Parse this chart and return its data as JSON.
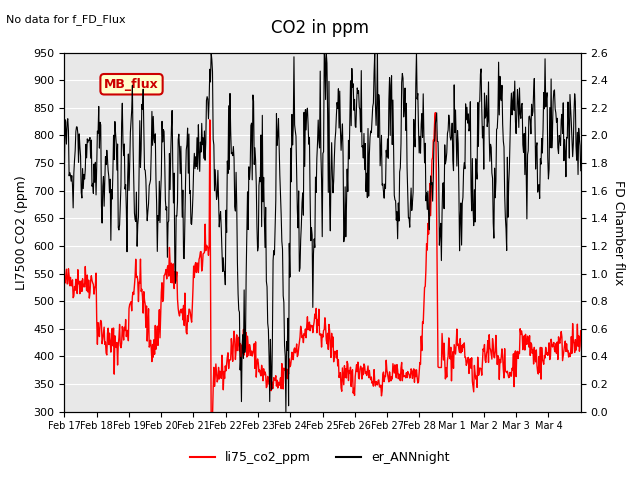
{
  "title": "CO2 in ppm",
  "top_left_text": "No data for f_FD_Flux",
  "ylabel_left": "LI7500 CO2 (ppm)",
  "ylabel_right": "FD Chamber flux",
  "ylim_left": [
    300,
    950
  ],
  "ylim_right": [
    0.0,
    2.6
  ],
  "yticks_left": [
    300,
    350,
    400,
    450,
    500,
    550,
    600,
    650,
    700,
    750,
    800,
    850,
    900,
    950
  ],
  "yticks_right": [
    0.0,
    0.2,
    0.4,
    0.6,
    0.8,
    1.0,
    1.2,
    1.4,
    1.6,
    1.8,
    2.0,
    2.2,
    2.4,
    2.6
  ],
  "xtick_labels": [
    "Feb 17",
    "Feb 18",
    "Feb 19",
    "Feb 20",
    "Feb 21",
    "Feb 22",
    "Feb 23",
    "Feb 24",
    "Feb 25",
    "Feb 26",
    "Feb 27",
    "Feb 28",
    "Mar 1",
    "Mar 2",
    "Mar 3",
    "Mar 4"
  ],
  "legend_labels": [
    "li75_co2_ppm",
    "er_ANNnight"
  ],
  "legend_colors": [
    "red",
    "black"
  ],
  "bg_color": "#e8e8e8",
  "annotation_box": {
    "text": "MB_flux",
    "facecolor": "#ffffcc",
    "edgecolor": "#cc0000",
    "textcolor": "#cc0000"
  },
  "figsize": [
    6.4,
    4.8
  ],
  "dpi": 100
}
